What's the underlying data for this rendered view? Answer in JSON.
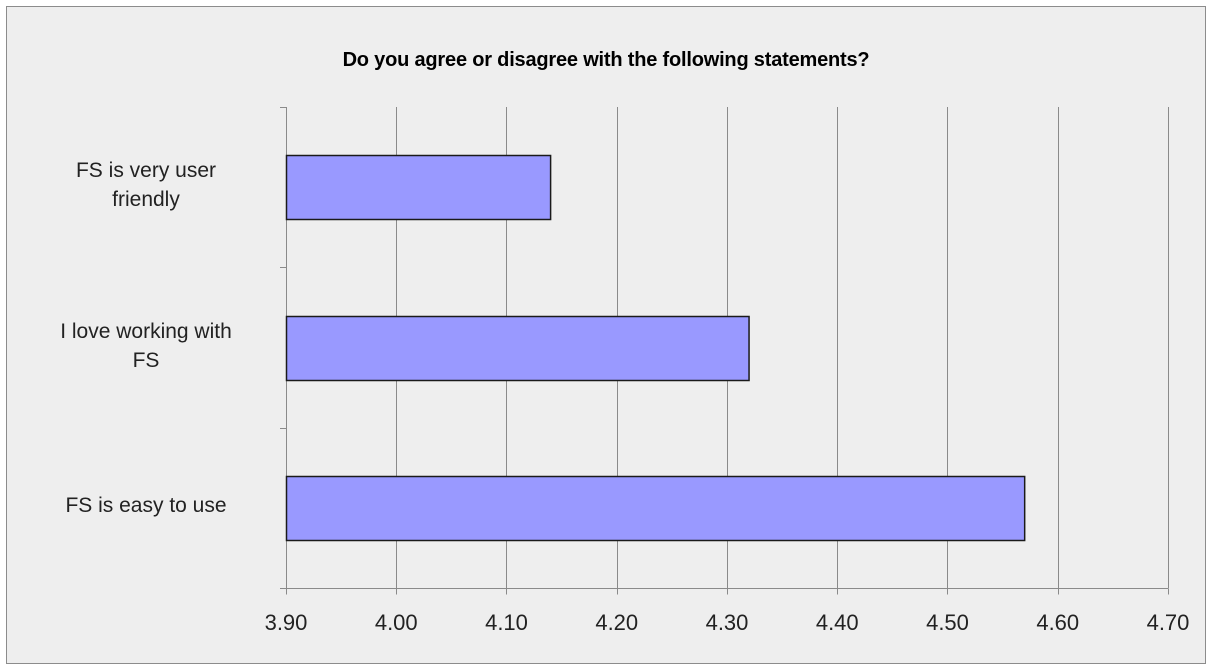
{
  "chart_data": {
    "type": "bar",
    "orientation": "horizontal",
    "title": "Do you agree or disagree with the following statements?",
    "categories": [
      "FS is very user friendly",
      "I love working with FS",
      "FS is easy to use"
    ],
    "category_labels": [
      "FS is very user\nfriendly",
      "I love working with\nFS",
      "FS is easy to use"
    ],
    "values": [
      4.14,
      4.32,
      4.57
    ],
    "xlim": [
      3.9,
      4.7
    ],
    "x_ticks": [
      3.9,
      4.0,
      4.1,
      4.2,
      4.3,
      4.4,
      4.5,
      4.6,
      4.7
    ],
    "x_tick_labels": [
      "3.90",
      "4.00",
      "4.10",
      "4.20",
      "4.30",
      "4.40",
      "4.50",
      "4.60",
      "4.70"
    ],
    "grid": true,
    "legend": "none",
    "bar_color": "#9999ff",
    "bar_edge_color": "#1a1a1a"
  }
}
